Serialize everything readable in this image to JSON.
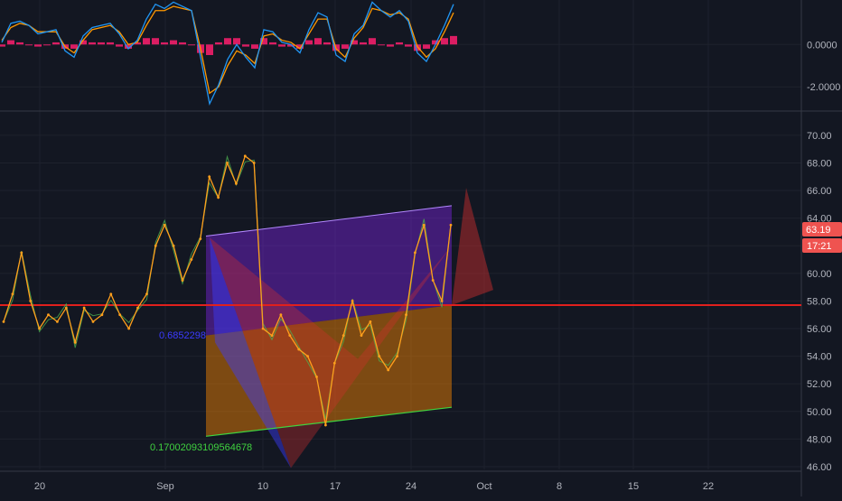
{
  "chart_data": [
    {
      "type": "line",
      "panel": "oscillator",
      "y_ticks": [
        "0.0000",
        "-2.0000"
      ],
      "y_tick_values": [
        0,
        -2
      ],
      "ylim": [
        -3.1,
        2.1
      ],
      "colors": {
        "macd": "#2196f3",
        "signal": "#ff9800",
        "histogram": "#ff1e6e"
      },
      "series": [
        {
          "values": [
            0.1,
            1.0,
            1.1,
            0.9,
            0.5,
            0.6,
            0.7,
            -0.3,
            -0.6,
            0.4,
            0.8,
            0.9,
            1.0,
            0.5,
            -0.2,
            0.2,
            1.2,
            1.9,
            1.7,
            2.0,
            1.8,
            1.6,
            -0.6,
            -2.8,
            -1.9,
            -0.7,
            0.0,
            -0.6,
            -1.1,
            0.7,
            0.6,
            0.1,
            0.0,
            -0.4,
            0.7,
            1.5,
            1.3,
            -0.5,
            -0.8,
            0.5,
            0.9,
            2.0,
            1.6,
            1.3,
            1.6,
            1.1,
            -0.4,
            -0.8,
            0.0,
            0.9,
            1.9
          ]
        },
        {
          "values": [
            0.2,
            0.8,
            1.0,
            0.9,
            0.6,
            0.6,
            0.6,
            -0.1,
            -0.4,
            0.2,
            0.7,
            0.8,
            0.9,
            0.6,
            0.0,
            0.1,
            0.9,
            1.6,
            1.6,
            1.8,
            1.7,
            1.6,
            -0.2,
            -2.3,
            -2.0,
            -1.0,
            -0.3,
            -0.5,
            -0.9,
            0.4,
            0.5,
            0.2,
            0.1,
            -0.2,
            0.5,
            1.2,
            1.2,
            -0.2,
            -0.6,
            0.3,
            0.8,
            1.7,
            1.6,
            1.4,
            1.5,
            1.2,
            -0.1,
            -0.6,
            -0.2,
            0.6,
            1.5
          ]
        },
        {
          "type": "bar",
          "values": [
            -0.1,
            0.2,
            0.1,
            0.0,
            -0.1,
            0.0,
            0.1,
            -0.2,
            -0.2,
            0.2,
            0.1,
            0.1,
            0.1,
            -0.1,
            -0.2,
            0.1,
            0.3,
            0.3,
            0.1,
            0.2,
            0.1,
            0.0,
            -0.4,
            -0.5,
            0.1,
            0.3,
            0.3,
            -0.1,
            -0.2,
            0.3,
            0.1,
            -0.1,
            -0.1,
            -0.2,
            0.2,
            0.3,
            0.1,
            -0.3,
            -0.2,
            0.2,
            0.1,
            0.3,
            0.0,
            -0.1,
            0.1,
            -0.1,
            -0.3,
            -0.2,
            0.2,
            0.3,
            0.4
          ]
        }
      ]
    },
    {
      "type": "line",
      "panel": "price",
      "x_ticks": [
        "20",
        "Sep",
        "10",
        "17",
        "24",
        "Oct",
        "8",
        "15",
        "22"
      ],
      "y_ticks": [
        "70.00",
        "68.00",
        "66.00",
        "64.00",
        "62.00",
        "60.00",
        "58.00",
        "56.00",
        "54.00",
        "52.00",
        "50.00",
        "48.00",
        "46.00"
      ],
      "y_tick_values": [
        70,
        68,
        66,
        64,
        62,
        60,
        58,
        56,
        54,
        52,
        50,
        48,
        46
      ],
      "ylim": [
        45.8,
        71.3
      ],
      "x_unit": "trading day index",
      "grid": true,
      "colors": {
        "price": "#ff9f1c",
        "price_alt": "#4caf50",
        "level": "#e0201d",
        "last_price_tag": "#ef5350",
        "purple_fill": "#8e24ff",
        "orange_fill": "#ff8a00",
        "blue_fill": "#3b3bff",
        "red_fill": "#d32f2f",
        "green_line": "#3fd23f"
      },
      "series": [
        {
          "x": [
            0,
            2,
            4,
            6,
            8,
            10,
            12,
            14,
            16,
            18,
            20,
            22,
            24,
            26,
            28,
            30,
            32,
            34,
            36,
            38,
            40,
            42,
            44,
            46,
            48,
            50,
            52,
            54,
            56,
            58,
            60,
            62,
            64,
            66,
            68,
            70,
            72,
            74,
            76,
            78,
            80,
            82,
            84,
            86,
            88,
            90,
            92,
            94,
            96,
            98,
            100
          ],
          "values": [
            56.5,
            58.5,
            61.5,
            58.0,
            56.0,
            57.0,
            56.5,
            57.5,
            55.0,
            57.5,
            56.5,
            57.0,
            58.5,
            57.0,
            56.0,
            57.5,
            58.5,
            62.0,
            63.5,
            62.0,
            59.5,
            61.0,
            62.5,
            67.0,
            65.5,
            68.0,
            66.5,
            68.5,
            68.0,
            56.0,
            55.5,
            57.0,
            55.5,
            54.5,
            54.0,
            52.5,
            49.0,
            53.5,
            55.5,
            58.0,
            55.5,
            56.5,
            54.0,
            53.0,
            54.0,
            57.0,
            61.5,
            63.5,
            59.5,
            58.0,
            63.5
          ]
        }
      ],
      "horizontal_level": 57.7,
      "last_price_tag": "63.19",
      "countdown_tag": "17:21",
      "annotations": [
        "0.6852298",
        "0.17002093109564678"
      ]
    }
  ]
}
